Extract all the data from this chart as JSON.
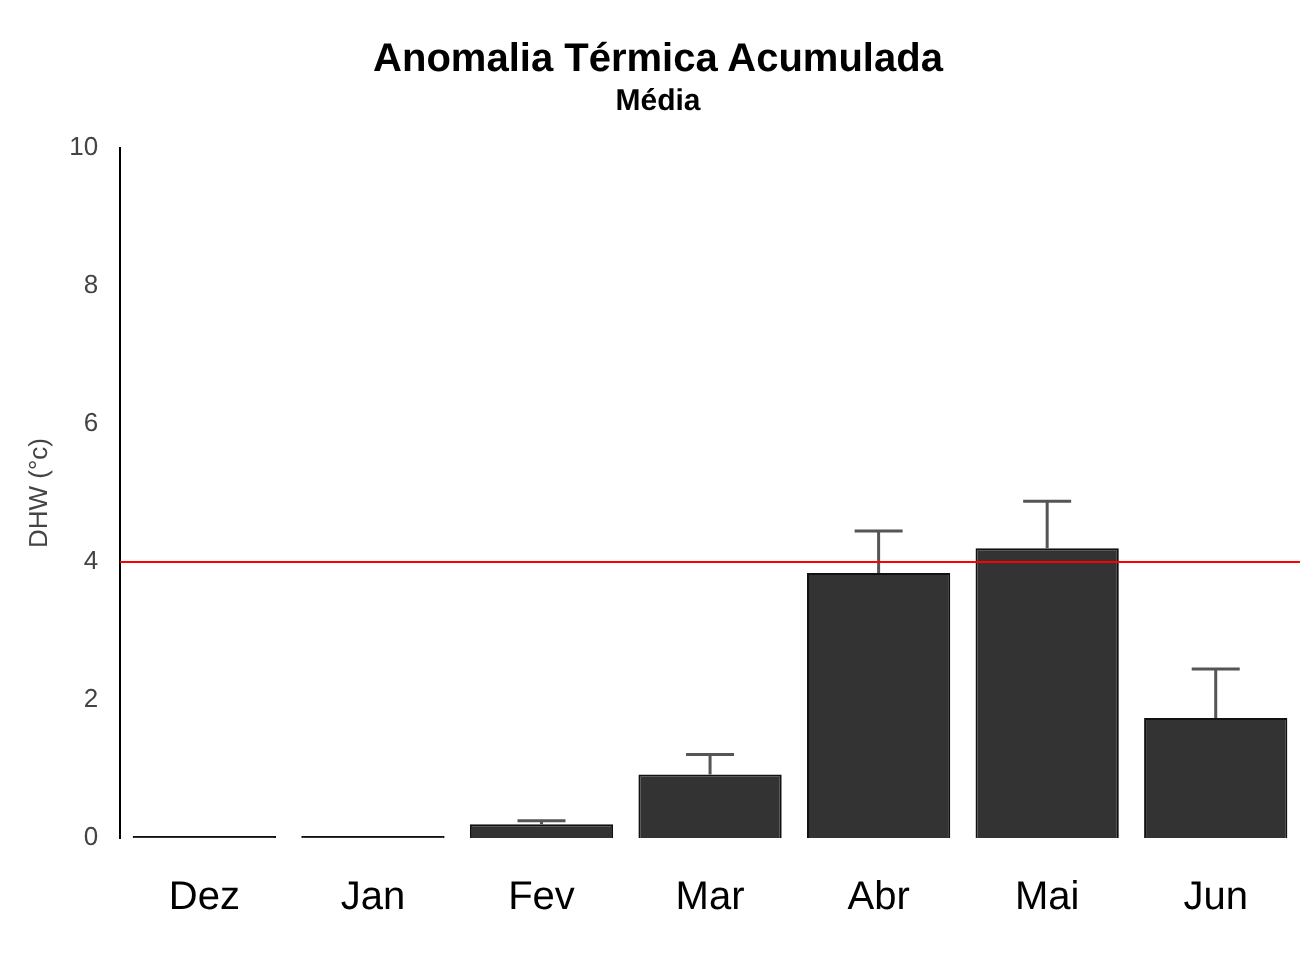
{
  "chart_data": {
    "type": "bar",
    "title": "Anomalia Térmica Acumulada",
    "subtitle": "Média",
    "ylabel": "DHW (°c)",
    "categories": [
      "Dez",
      "Jan",
      "Fev",
      "Mar",
      "Abr",
      "Mai",
      "Jun"
    ],
    "values": [
      0,
      0,
      0.2,
      0.92,
      3.84,
      4.2,
      1.74
    ],
    "errors": [
      null,
      null,
      [
        0.2,
        0.25
      ],
      [
        0.92,
        1.21
      ],
      [
        3.84,
        4.45
      ],
      [
        4.2,
        4.88
      ],
      [
        1.74,
        2.45
      ]
    ],
    "color": "#333333",
    "ylim": [
      0,
      10
    ],
    "yticks": [
      0,
      2,
      4,
      6,
      8,
      10
    ],
    "grid": false,
    "ref_lines": [
      {
        "axis": "y",
        "value": 4,
        "color": "#ff0000"
      }
    ]
  }
}
